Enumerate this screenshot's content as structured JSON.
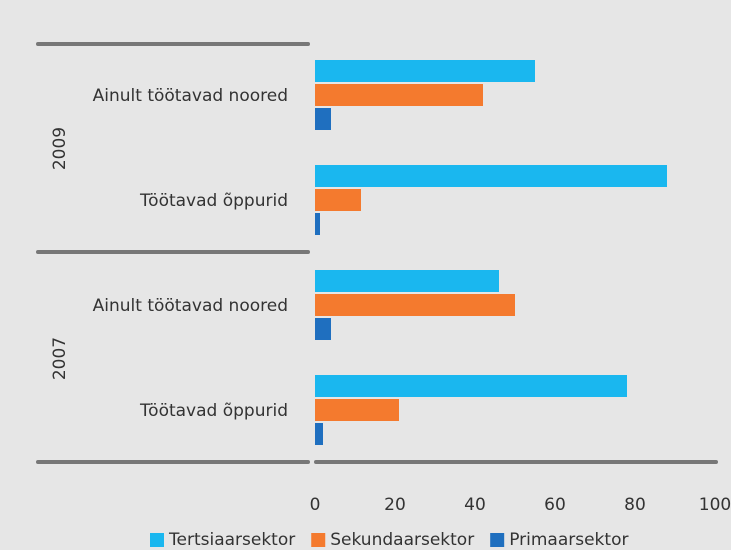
{
  "chart_data": {
    "type": "hbar",
    "categories": [
      "Ainult töötavad noored",
      "Töötavad õppurid",
      "Ainult töötavad noored",
      "Töötavad õppurid"
    ],
    "groups": [
      {
        "label": "2009",
        "categories": [
          0,
          1
        ]
      },
      {
        "label": "2007",
        "categories": [
          2,
          3
        ]
      }
    ],
    "series": [
      {
        "name": "Tertsiaarsektor",
        "color": "#1ab7ef",
        "values": [
          55,
          88,
          46,
          78
        ]
      },
      {
        "name": "Sekundaarsektor",
        "color": "#f47a2e",
        "values": [
          42,
          11.5,
          50,
          21
        ]
      },
      {
        "name": "Primaarsektor",
        "color": "#1f6fbf",
        "values": [
          4,
          1.25,
          4,
          2
        ]
      }
    ],
    "xlim": [
      0,
      100
    ],
    "xticks": [
      0,
      20,
      40,
      60,
      80,
      100
    ],
    "grid": false,
    "legend": "bottom"
  }
}
